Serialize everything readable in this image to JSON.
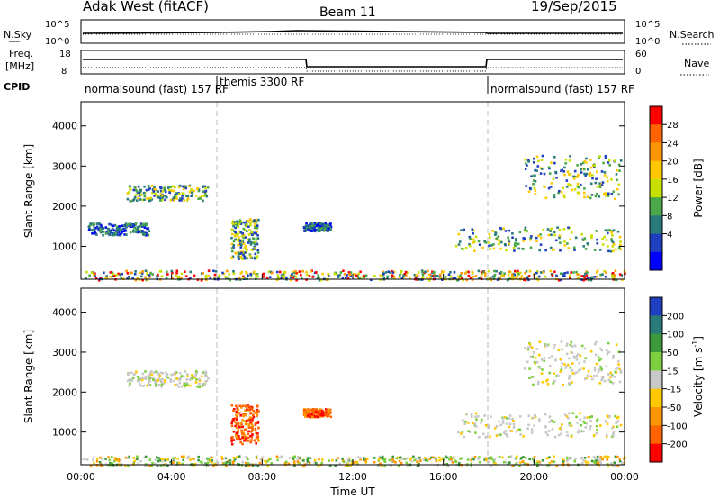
{
  "header": {
    "station": "Adak West (fitACF)",
    "beam": "Beam 11",
    "date": "19/Sep/2015"
  },
  "nsky_panel": {
    "left_label": "N.Sky",
    "right_label": "N.Search",
    "left_ticks": [
      "10^5",
      "10^0"
    ],
    "right_ticks": [
      "10^5",
      "10^0"
    ]
  },
  "freq_panel": {
    "left_label_1": "Freq.",
    "left_label_2": "[MHz]",
    "right_label": "Nave",
    "left_ticks": [
      "18",
      "8"
    ],
    "right_ticks": [
      "60",
      "0"
    ]
  },
  "cpid": {
    "label": "CPID",
    "segments": [
      {
        "text": "normalsound (fast) 157 RF",
        "start_hour": 0
      },
      {
        "text": "themis 3300 RF",
        "start_hour": 6
      },
      {
        "text": "normalsound (fast) 157 RF",
        "start_hour": 18
      }
    ]
  },
  "power_colorbar": {
    "label": "Power [dB]",
    "ticks": [
      "28",
      "24",
      "20",
      "16",
      "12",
      "8",
      "4"
    ],
    "colors": [
      "#ff0000",
      "#ff6400",
      "#ff9600",
      "#ffc800",
      "#c8e000",
      "#4aa84a",
      "#2a7a7a",
      "#1f3fbf",
      "#0000ff"
    ]
  },
  "velocity_colorbar": {
    "label": "Velocity [m s^-1]",
    "ticks": [
      "200",
      "100",
      "50",
      "15",
      "-15",
      "-50",
      "-100",
      "-200"
    ],
    "colors": [
      "#1f3fbf",
      "#2a7a7a",
      "#3c9a3c",
      "#7cd040",
      "#c8c8c8",
      "#ffc800",
      "#ff9600",
      "#ff6400",
      "#ff0000"
    ]
  },
  "x_axis": {
    "label": "Time UT",
    "ticks": [
      "00:00",
      "04:00",
      "08:00",
      "12:00",
      "16:00",
      "20:00",
      "00:00"
    ]
  },
  "chart_data": {
    "type": "heatmap",
    "x": {
      "label": "Time UT",
      "range_hours": [
        0,
        24
      ],
      "tick_hours": [
        0,
        4,
        8,
        12,
        16,
        20,
        24
      ]
    },
    "y": {
      "label": "Slant Range [km]",
      "range_km": [
        180,
        4600
      ],
      "ticks": [
        1000,
        2000,
        3000,
        4000
      ]
    },
    "mode_changes_hours": [
      6,
      18
    ],
    "power_echo_regions": [
      {
        "t0": 2.0,
        "t1": 5.6,
        "r0": 2150,
        "r1": 2550,
        "level": "mid"
      },
      {
        "t0": 0.3,
        "t1": 3.0,
        "r0": 1300,
        "r1": 1600,
        "level": "low"
      },
      {
        "t0": 6.6,
        "t1": 7.8,
        "r0": 700,
        "r1": 1700,
        "level": "mid"
      },
      {
        "t0": 9.8,
        "t1": 11.0,
        "r0": 1400,
        "r1": 1600,
        "level": "low"
      },
      {
        "t0": 16.5,
        "t1": 23.8,
        "r0": 900,
        "r1": 1500,
        "level": "mid"
      },
      {
        "t0": 19.5,
        "t1": 23.8,
        "r0": 2200,
        "r1": 3300,
        "level": "mid"
      },
      {
        "t0": 0.0,
        "t1": 24.0,
        "r0": 180,
        "r1": 420,
        "level": "ground"
      }
    ],
    "velocity_echo_regions": [
      {
        "t0": 2.0,
        "t1": 5.6,
        "r0": 2150,
        "r1": 2550,
        "v": "near-zero"
      },
      {
        "t0": 6.6,
        "t1": 7.8,
        "r0": 700,
        "r1": 1700,
        "v": "negative"
      },
      {
        "t0": 9.8,
        "t1": 11.0,
        "r0": 1400,
        "r1": 1600,
        "v": "negative"
      },
      {
        "t0": 19.5,
        "t1": 23.8,
        "r0": 2200,
        "r1": 3300,
        "v": "near-zero"
      },
      {
        "t0": 16.5,
        "t1": 23.8,
        "r0": 900,
        "r1": 1500,
        "v": "near-zero"
      },
      {
        "t0": 0.0,
        "t1": 24.0,
        "r0": 180,
        "r1": 420,
        "v": "mixed-low"
      }
    ]
  }
}
